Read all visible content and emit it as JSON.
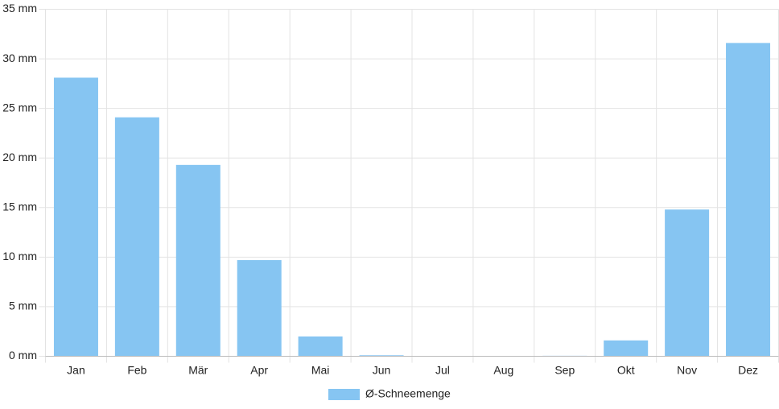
{
  "chart_data": {
    "type": "bar",
    "categories": [
      "Jan",
      "Feb",
      "Mär",
      "Apr",
      "Mai",
      "Jun",
      "Jul",
      "Aug",
      "Sep",
      "Okt",
      "Nov",
      "Dez"
    ],
    "series": [
      {
        "name": "Ø-Schneemenge",
        "color": "#86c5f2",
        "values": [
          28.1,
          24.1,
          19.3,
          9.7,
          2.0,
          0.1,
          0,
          0,
          0.05,
          1.6,
          14.8,
          31.6
        ]
      }
    ],
    "ylim": [
      0,
      35
    ],
    "yticks": [
      {
        "value": 0,
        "label": "0 mm"
      },
      {
        "value": 5,
        "label": "5 mm"
      },
      {
        "value": 10,
        "label": "10 mm"
      },
      {
        "value": 15,
        "label": "15 mm"
      },
      {
        "value": 20,
        "label": "20 mm"
      },
      {
        "value": 25,
        "label": "25 mm"
      },
      {
        "value": 30,
        "label": "30 mm"
      },
      {
        "value": 35,
        "label": "35 mm"
      }
    ],
    "grid": true,
    "legend": "bottom"
  }
}
